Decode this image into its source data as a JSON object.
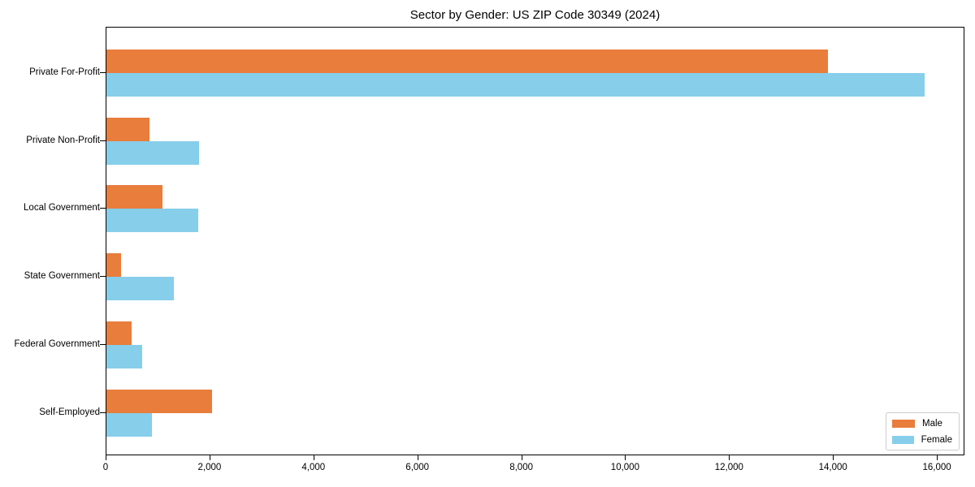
{
  "chart_data": {
    "type": "bar",
    "orientation": "horizontal",
    "title": "Sector by Gender: US ZIP Code 30349 (2024)",
    "categories": [
      "Private For-Profit",
      "Private Non-Profit",
      "Local Government",
      "State Government",
      "Federal Government",
      "Self-Employed"
    ],
    "series": [
      {
        "name": "Male",
        "color": "#e87d3c",
        "values": [
          13880,
          830,
          1080,
          280,
          480,
          2030
        ]
      },
      {
        "name": "Female",
        "color": "#87ceeb",
        "values": [
          15750,
          1780,
          1760,
          1300,
          690,
          870
        ]
      }
    ],
    "xlim": [
      0,
      16530
    ],
    "x_tick_values": [
      0,
      2000,
      4000,
      6000,
      8000,
      10000,
      12000,
      14000,
      16000
    ],
    "x_tick_labels": [
      "0",
      "2,000",
      "4,000",
      "6,000",
      "8,000",
      "10,000",
      "12,000",
      "14,000",
      "16,000"
    ],
    "grid": false,
    "legend_position": "lower right",
    "axis_color": "#000000"
  }
}
